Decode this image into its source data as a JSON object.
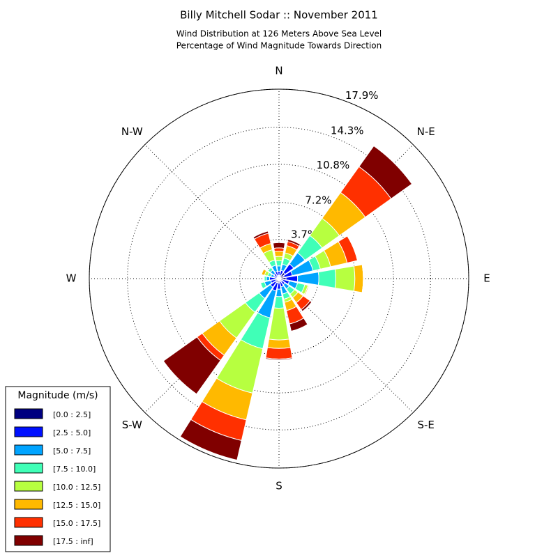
{
  "chart_data": {
    "type": "windrose",
    "title": "Billy Mitchell Sodar :: November 2011",
    "subtitle": [
      "Wind Distribution at 126 Meters Above Sea Level",
      "Percentage of Wind Magnitude Towards Direction"
    ],
    "x": [
      0,
      22.5,
      45,
      67.5,
      90,
      112.5,
      135,
      157.5,
      180,
      202.5,
      225,
      247.5,
      270,
      292.5,
      315,
      337.5
    ],
    "xticks": [
      {
        "value": 0,
        "label": "N"
      },
      {
        "value": 45,
        "label": "N-E"
      },
      {
        "value": 90,
        "label": "E"
      },
      {
        "value": 135,
        "label": "S-E"
      },
      {
        "value": 180,
        "label": "S"
      },
      {
        "value": 225,
        "label": "S-W"
      },
      {
        "value": 270,
        "label": "W"
      },
      {
        "value": 315,
        "label": "N-W"
      }
    ],
    "ylim": [
      0,
      17.9
    ],
    "yticks": [
      {
        "value": 3.7,
        "label": "3.7%"
      },
      {
        "value": 7.2,
        "label": "7.2%"
      },
      {
        "value": 10.8,
        "label": "10.8%"
      },
      {
        "value": 14.3,
        "label": "14.3%"
      },
      {
        "value": 17.9,
        "label": "17.9%"
      }
    ],
    "grid": true,
    "legend_title": "Magnitude (m/s)",
    "legend_position": "lower-left",
    "series": [
      {
        "name": "[0.0 : 2.5]",
        "color": "#000080",
        "values": [
          0.3,
          0.3,
          0.7,
          0.5,
          0.66,
          0.4,
          0.3,
          0.3,
          0.4,
          0.4,
          0.4,
          0.3,
          0.3,
          0.2,
          0.2,
          0.3
        ]
      },
      {
        "name": "[2.5 : 5.0]",
        "color": "#0010ff",
        "values": [
          0.4,
          0.5,
          1.0,
          0.8,
          1.1,
          0.6,
          0.4,
          0.5,
          0.6,
          0.8,
          0.6,
          0.5,
          0.6,
          0.3,
          0.4,
          0.4
        ]
      },
      {
        "name": "[5.0 : 7.5]",
        "color": "#00a4ff",
        "values": [
          0.5,
          0.6,
          1.3,
          2.0,
          2.0,
          0.8,
          0.5,
          0.7,
          0.7,
          2.6,
          1.3,
          0.6,
          0.3,
          0.3,
          0.4,
          0.6
        ]
      },
      {
        "name": "[7.5 : 10.0]",
        "color": "#40ffb7",
        "values": [
          0.5,
          0.6,
          2.0,
          0.7,
          1.6,
          0.7,
          0.6,
          0.5,
          1.1,
          3.0,
          1.6,
          0.4,
          0.2,
          0.3,
          0.3,
          0.5
        ]
      },
      {
        "name": "[10.0 : 12.5]",
        "color": "#b7ff40",
        "values": [
          0.4,
          0.5,
          2.0,
          1.0,
          1.8,
          0.3,
          0.4,
          0.3,
          3.0,
          4.3,
          3.0,
          0,
          0,
          0.3,
          0,
          1.0
        ]
      },
      {
        "name": "[12.5 : 15.0]",
        "color": "#ffb900",
        "values": [
          0.5,
          0.7,
          3.0,
          1.6,
          0.8,
          0.1,
          0.6,
          0.8,
          0.8,
          2.6,
          2.0,
          0,
          0,
          0.3,
          0,
          0.6
        ]
      },
      {
        "name": "[15.0 : 17.5]",
        "color": "#ff3000",
        "values": [
          0.3,
          0.4,
          3.0,
          1.0,
          0,
          0,
          0.8,
          1.3,
          1.0,
          2.0,
          0.6,
          0,
          0,
          0,
          0,
          1.0
        ]
      },
      {
        "name": "[17.5 : inf]",
        "color": "#800000",
        "values": [
          0.5,
          0.2,
          2.4,
          0,
          0,
          0,
          0.2,
          0.7,
          0.1,
          1.9,
          3.9,
          0,
          0,
          0,
          0,
          0.2
        ]
      }
    ]
  }
}
